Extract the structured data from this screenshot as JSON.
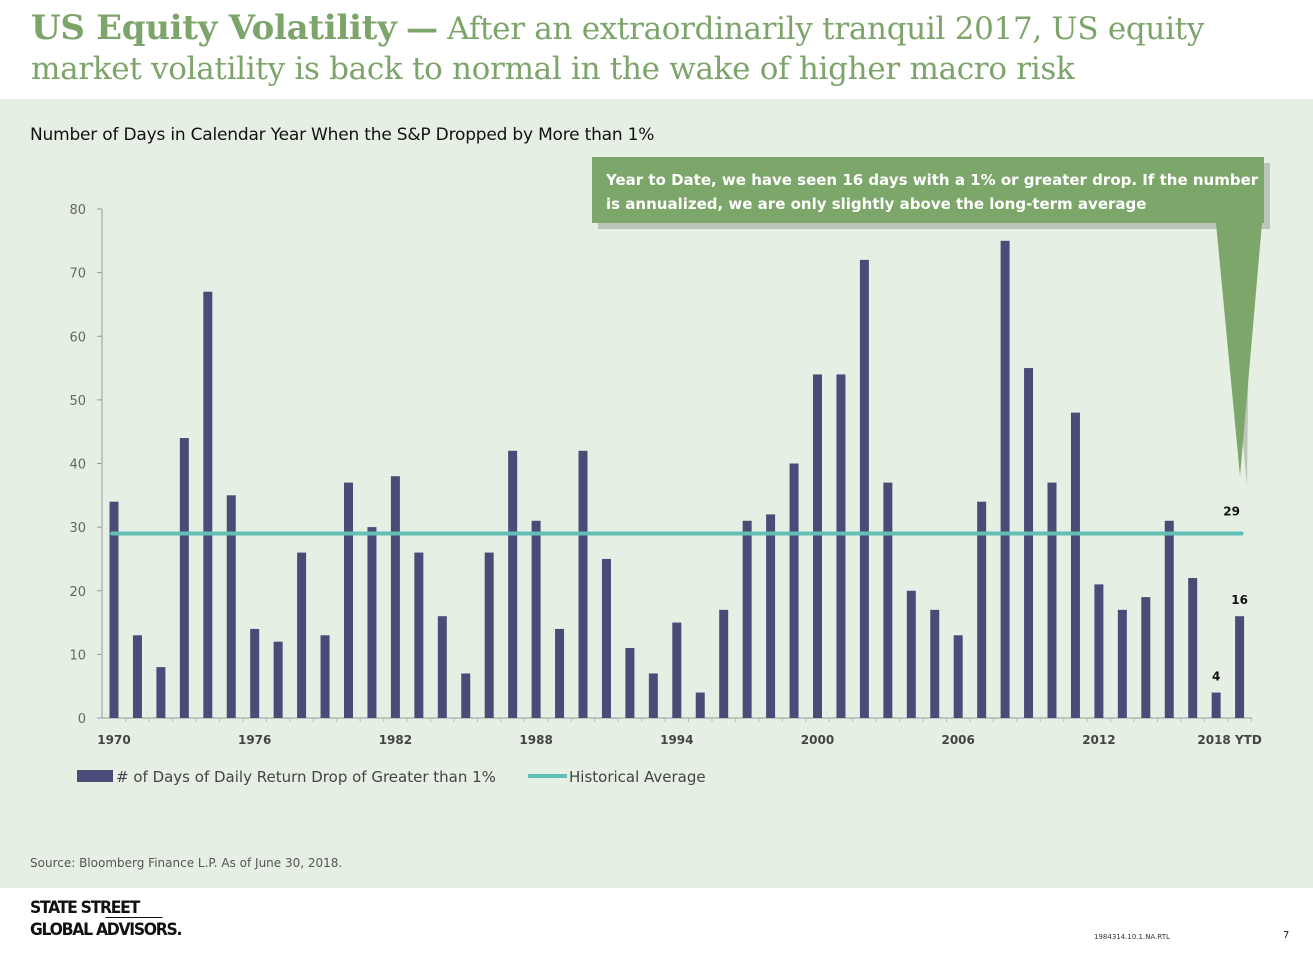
{
  "header": {
    "title_lead": "US Equity Volatility",
    "title_dash": "—",
    "title_rest": "After an extraordinarily tranquil 2017, US equity market volatility is back to normal in the wake of higher macro risk"
  },
  "source": "Source: Bloomberg Finance L.P. As of June 30, 2018.",
  "footer": {
    "logo_line1": "STATE STREET",
    "logo_line2": "GLOBAL ADVISORS.",
    "doc_id": "1984314.10.1.NA.RTL",
    "page_number": "7"
  },
  "colors": {
    "bar": "#4b4b78",
    "average_line": "#61c0b4",
    "callout": "#7da66a",
    "title": "#7da46a",
    "panel": "#e6efe3"
  },
  "chart_data": {
    "type": "bar",
    "title": "Number of Days in Calendar Year When the S&P Dropped by More than 1%",
    "categories": [
      "1970",
      "1971",
      "1972",
      "1973",
      "1974",
      "1975",
      "1976",
      "1977",
      "1978",
      "1979",
      "1980",
      "1981",
      "1982",
      "1983",
      "1984",
      "1985",
      "1986",
      "1987",
      "1988",
      "1989",
      "1990",
      "1991",
      "1992",
      "1993",
      "1994",
      "1995",
      "1996",
      "1997",
      "1998",
      "1999",
      "2000",
      "2001",
      "2002",
      "2003",
      "2004",
      "2005",
      "2006",
      "2007",
      "2008",
      "2009",
      "2010",
      "2011",
      "2012",
      "2013",
      "2014",
      "2015",
      "2016",
      "2017",
      "2018 YTD"
    ],
    "x_tick_labels": [
      "1970",
      "1976",
      "1982",
      "1988",
      "1994",
      "2000",
      "2006",
      "2012",
      "2018 YTD"
    ],
    "series": [
      {
        "name": "# of Days of Daily Return Drop of Greater than 1%",
        "values": [
          34,
          13,
          8,
          44,
          67,
          35,
          14,
          12,
          26,
          13,
          37,
          30,
          38,
          26,
          16,
          7,
          26,
          42,
          31,
          14,
          42,
          25,
          11,
          7,
          15,
          4,
          17,
          31,
          32,
          40,
          54,
          54,
          72,
          37,
          20,
          17,
          13,
          34,
          75,
          55,
          37,
          48,
          21,
          17,
          19,
          31,
          22,
          4,
          16
        ]
      }
    ],
    "average": {
      "name": "Historical Average",
      "value": 29,
      "label": "29"
    },
    "data_labels": [
      {
        "category": "2017",
        "text": "4"
      },
      {
        "category": "2018 YTD",
        "text": "16"
      }
    ],
    "y_ticks": [
      0,
      10,
      20,
      30,
      40,
      50,
      60,
      70,
      80
    ],
    "ylim": [
      0,
      80
    ],
    "xlabel": "",
    "ylabel": "",
    "grid": false,
    "legend_position": "bottom-left",
    "callout": {
      "lines": [
        "Year to Date, we have seen 16 days with a 1% or greater drop. If the number",
        "is annualized, we are only slightly above the long-term average"
      ]
    }
  }
}
